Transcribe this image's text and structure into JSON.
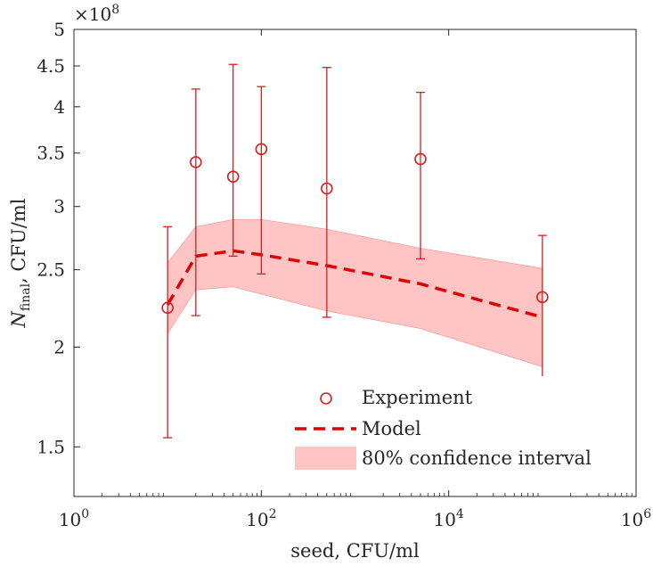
{
  "chart_data": {
    "type": "scatter",
    "xscale": "log",
    "yscale": "log",
    "xlim": [
      1,
      1000000
    ],
    "ylim": [
      130000000,
      500000000
    ],
    "xlabel": "seed, CFU/ml",
    "ylabel_main": "N",
    "ylabel_sub": "final",
    "ylabel_rest": ", CFU/ml",
    "y_exponent_prefix": "×10",
    "y_exponent_power": "8",
    "xticks": [
      {
        "value": 1,
        "base": "10",
        "exp": "0"
      },
      {
        "value": 100,
        "base": "10",
        "exp": "2"
      },
      {
        "value": 10000,
        "base": "10",
        "exp": "4"
      },
      {
        "value": 1000000,
        "base": "10",
        "exp": "6"
      }
    ],
    "yticks": [
      {
        "value": 150000000,
        "label": "1.5"
      },
      {
        "value": 200000000,
        "label": "2"
      },
      {
        "value": 250000000,
        "label": "2.5"
      },
      {
        "value": 300000000,
        "label": "3"
      },
      {
        "value": 350000000,
        "label": "3.5"
      },
      {
        "value": 400000000,
        "label": "4"
      },
      {
        "value": 450000000,
        "label": "4.5"
      },
      {
        "value": 500000000,
        "label": "5"
      }
    ],
    "series": [
      {
        "name": "Experiment",
        "kind": "points_with_errorbars",
        "x": [
          10,
          20,
          50,
          100,
          500,
          5000,
          100000
        ],
        "y": [
          224000000,
          341000000,
          327000000,
          354000000,
          316000000,
          344000000,
          231000000
        ],
        "y_low": [
          154000000,
          219000000,
          260000000,
          247000000,
          218000000,
          258000000,
          178000000
        ],
        "y_high": [
          283000000,
          421000000,
          452000000,
          424000000,
          448000000,
          417000000,
          276000000
        ]
      },
      {
        "name": "Model",
        "kind": "dashed_line",
        "x": [
          10,
          20,
          50,
          100,
          500,
          5000,
          100000
        ],
        "y": [
          226000000,
          260000000,
          264000000,
          261000000,
          253000000,
          240000000,
          218000000
        ]
      },
      {
        "name": "80% confidence interval",
        "kind": "band",
        "x": [
          10,
          20,
          50,
          100,
          500,
          5000,
          100000
        ],
        "y_low": [
          208000000,
          236000000,
          238000000,
          233000000,
          222000000,
          211000000,
          189000000
        ],
        "y_high": [
          255000000,
          283000000,
          289000000,
          289000000,
          281000000,
          266000000,
          251000000
        ]
      }
    ],
    "legend": {
      "placement": "bottom-right",
      "entries": [
        "Experiment",
        "Model",
        "80% confidence interval"
      ]
    },
    "colors": {
      "marker": "#d42020",
      "line": "#e00000",
      "band": "#ffc4c4",
      "band_edge": "#f4a0a0",
      "axis": "#262626"
    }
  }
}
